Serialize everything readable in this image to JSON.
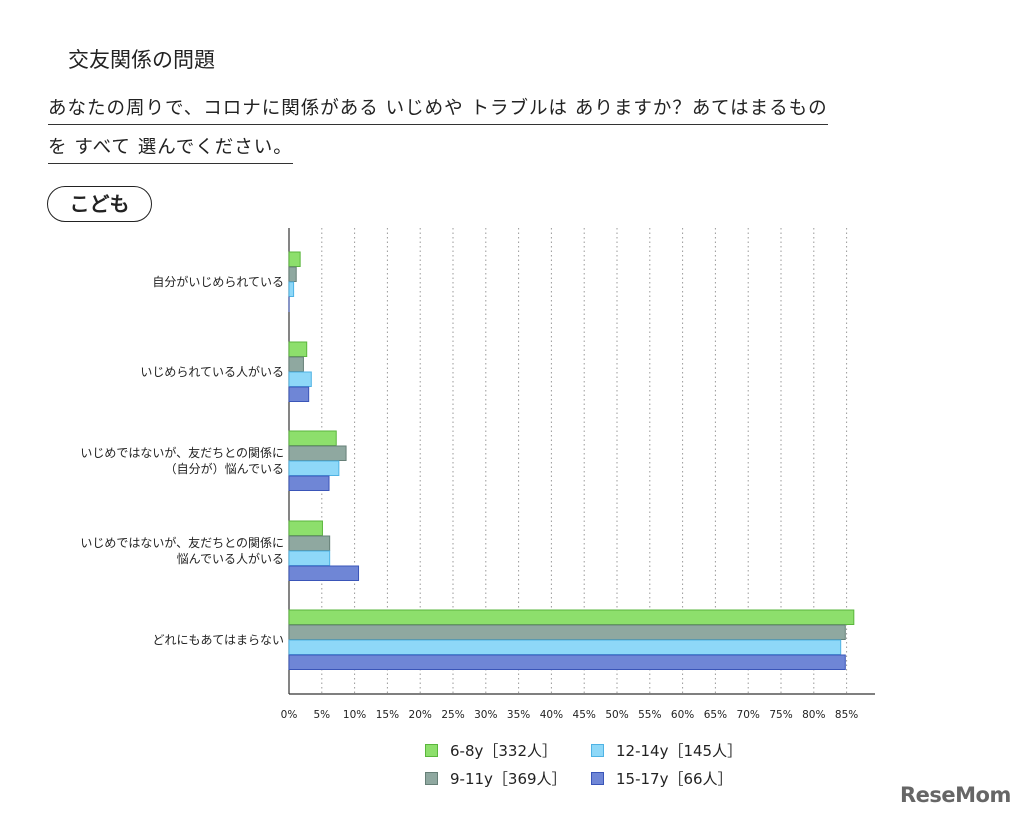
{
  "section_title": "交友関係の問題",
  "question": {
    "line1": "あなたの周りで、コロナに関係がある いじめや トラブルは ありますか？あてはまるもの",
    "line2": "を すべて 選んでください。"
  },
  "badge": "こども",
  "watermark": "ReseMom",
  "chart_data": {
    "type": "bar",
    "orientation": "horizontal",
    "categories": [
      "自分がいじめられている",
      "いじめられている人がいる",
      "いじめではないが、友だちとの関係に\n（自分が）悩んでいる",
      "いじめではないが、友だちとの関係に\n悩んでいる人がいる",
      "どれにもあてはまらない"
    ],
    "series": [
      {
        "name": "6-8y［332人］",
        "color": "#8ddf6c",
        "values": [
          1.7,
          2.7,
          7.2,
          5.1,
          86.1
        ]
      },
      {
        "name": "9-11y［369人］",
        "color": "#8fa8a0",
        "values": [
          1.1,
          2.2,
          8.7,
          6.2,
          84.8
        ]
      },
      {
        "name": "12-14y［145人］",
        "color": "#8ed8f8",
        "values": [
          0.7,
          3.4,
          7.6,
          6.2,
          84.1
        ]
      },
      {
        "name": "15-17y［66人］",
        "color": "#6f86d6",
        "values": [
          0.0,
          3.0,
          6.1,
          10.6,
          84.8
        ]
      }
    ],
    "xaxis": {
      "ticks": [
        0,
        5,
        10,
        15,
        20,
        25,
        30,
        35,
        40,
        45,
        50,
        55,
        60,
        65,
        70,
        75,
        80,
        85
      ],
      "tick_labels": [
        "0%",
        "5%",
        "10%",
        "15%",
        "20%",
        "25%",
        "30%",
        "35%",
        "40%",
        "45%",
        "50%",
        "55%",
        "60%",
        "65%",
        "70%",
        "75%",
        "80%",
        "85%"
      ],
      "range": [
        0,
        89
      ]
    },
    "grid": "vertical dotted",
    "legend_position": "bottom"
  }
}
